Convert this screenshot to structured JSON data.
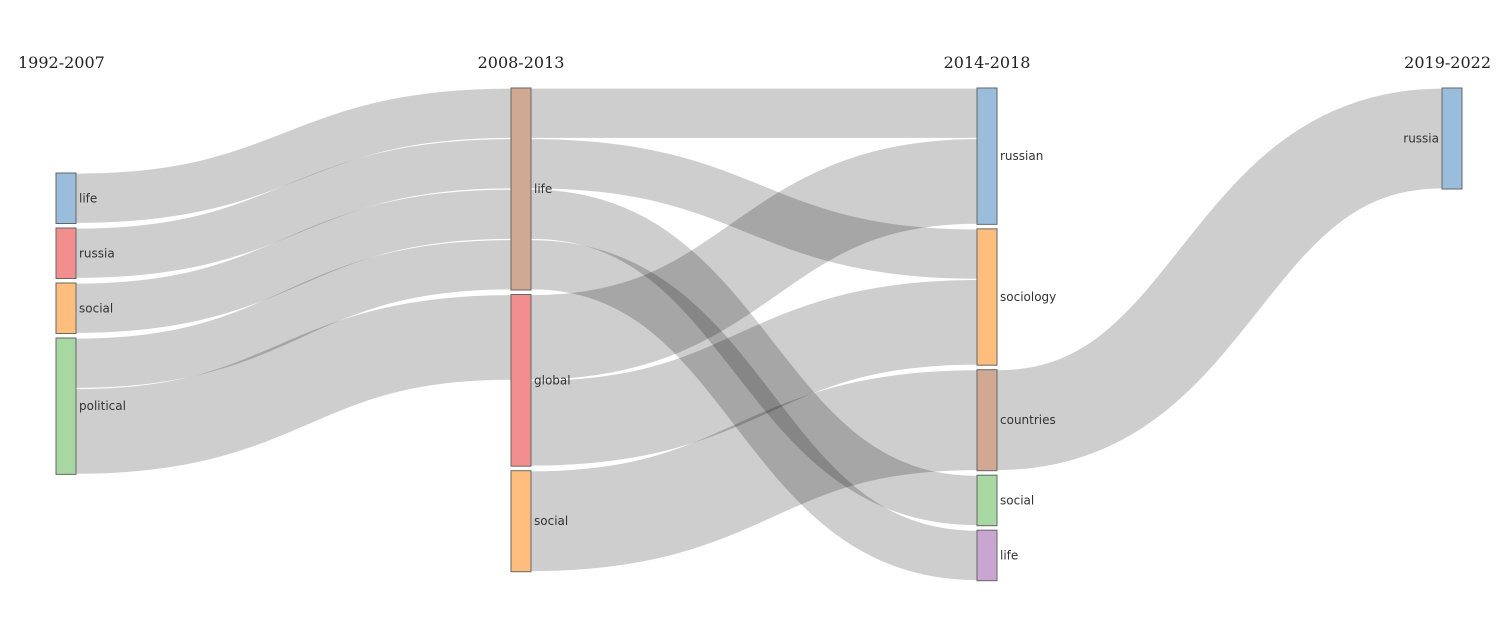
{
  "chart_data": {
    "type": "sankey",
    "columns": [
      {
        "key": "c0",
        "title": "1992-2007"
      },
      {
        "key": "c1",
        "title": "2008-2013"
      },
      {
        "key": "c2",
        "title": "2014-2018"
      },
      {
        "key": "c3",
        "title": "2019-2022"
      }
    ],
    "nodes": [
      {
        "id": "c0_life",
        "column": 0,
        "label": "life",
        "color": "#9bbddc"
      },
      {
        "id": "c0_russia",
        "column": 0,
        "label": "russia",
        "color": "#f28e8e"
      },
      {
        "id": "c0_social",
        "column": 0,
        "label": "social",
        "color": "#ffbe7d"
      },
      {
        "id": "c0_political",
        "column": 0,
        "label": "political",
        "color": "#a8d8a2"
      },
      {
        "id": "c1_life",
        "column": 1,
        "label": "life",
        "color": "#d1a891"
      },
      {
        "id": "c1_global",
        "column": 1,
        "label": "global",
        "color": "#f28e8e"
      },
      {
        "id": "c1_social",
        "column": 1,
        "label": "social",
        "color": "#ffbe7d"
      },
      {
        "id": "c2_russian",
        "column": 2,
        "label": "russian",
        "color": "#9bbddc"
      },
      {
        "id": "c2_sociology",
        "column": 2,
        "label": "sociology",
        "color": "#ffbe7d"
      },
      {
        "id": "c2_countries",
        "column": 2,
        "label": "countries",
        "color": "#d1a891"
      },
      {
        "id": "c2_social",
        "column": 2,
        "label": "social",
        "color": "#a8d8a2"
      },
      {
        "id": "c2_life",
        "column": 2,
        "label": "life",
        "color": "#c9a6d1"
      },
      {
        "id": "c3_russia",
        "column": 3,
        "label": "russia",
        "color": "#9bbddc"
      }
    ],
    "links": [
      {
        "source": "c0_life",
        "target": "c1_life",
        "value": 1
      },
      {
        "source": "c0_russia",
        "target": "c1_life",
        "value": 1
      },
      {
        "source": "c0_social",
        "target": "c1_life",
        "value": 1
      },
      {
        "source": "c0_political",
        "target": "c1_life",
        "value": 1
      },
      {
        "source": "c0_political",
        "target": "c1_global",
        "value": 1.7
      },
      {
        "source": "c1_life",
        "target": "c2_russian",
        "value": 1
      },
      {
        "source": "c1_life",
        "target": "c2_sociology",
        "value": 1
      },
      {
        "source": "c1_life",
        "target": "c2_social",
        "value": 1
      },
      {
        "source": "c1_life",
        "target": "c2_life",
        "value": 1
      },
      {
        "source": "c1_global",
        "target": "c2_russian",
        "value": 1.7
      },
      {
        "source": "c1_global",
        "target": "c2_sociology",
        "value": 1.7
      },
      {
        "source": "c1_social",
        "target": "c2_countries",
        "value": 2
      },
      {
        "source": "c2_countries",
        "target": "c3_russia",
        "value": 2
      }
    ]
  }
}
